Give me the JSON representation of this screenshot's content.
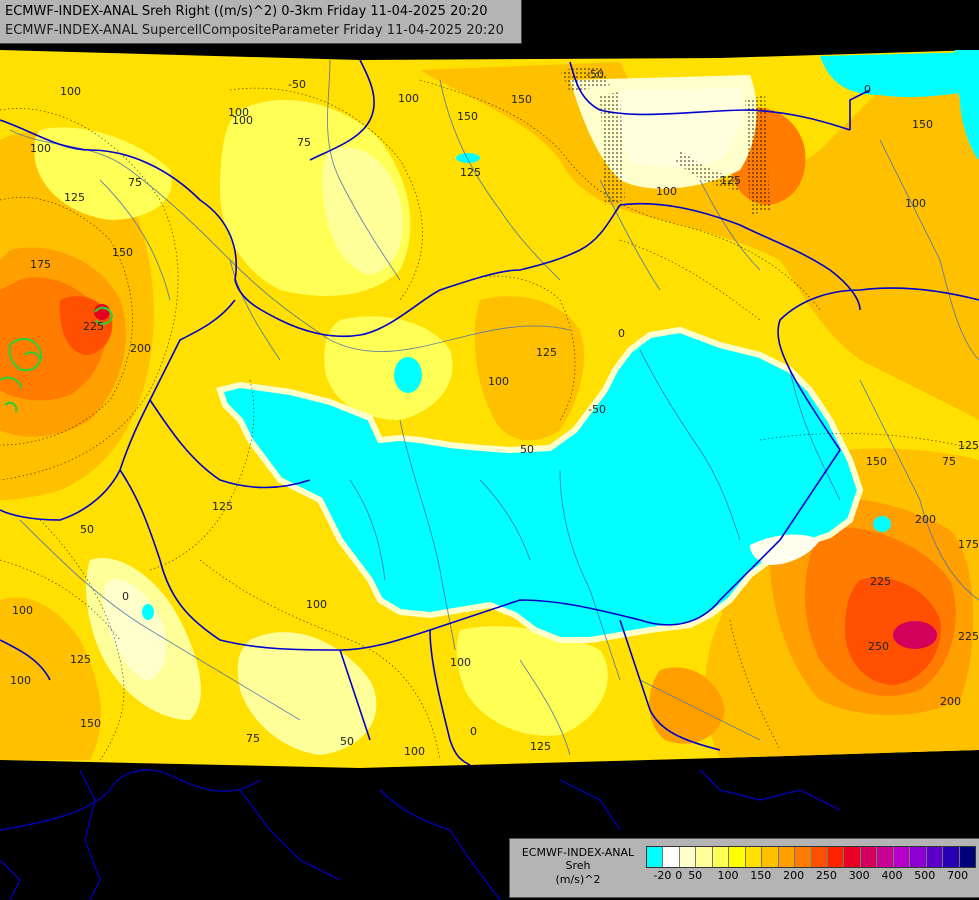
{
  "header": {
    "line1": "ECMWF-INDEX-ANAL Sreh Right ((m/s)^2) 0-3km Friday 11-04-2025 20:20",
    "line2": "ECMWF-INDEX-ANAL SupercellCompositeParameter Friday 11-04-2025 20:20"
  },
  "legend": {
    "name_line1": "ECMWF-INDEX-ANAL",
    "name_line2": "Sreh",
    "unit": "(m/s)^2",
    "colors": [
      "#00ffff",
      "#ffffff",
      "#ffffcc",
      "#ffff99",
      "#ffff55",
      "#ffff00",
      "#ffe000",
      "#ffc000",
      "#ffa000",
      "#ff7c00",
      "#ff5000",
      "#ff2400",
      "#e60023",
      "#d2005a",
      "#c80096",
      "#b400c8",
      "#8c00d2",
      "#5a00c8",
      "#2800b4",
      "#000078"
    ],
    "ticks": [
      {
        "label": "-20",
        "index": 0
      },
      {
        "label": "0",
        "index": 1
      },
      {
        "label": "50",
        "index": 2
      },
      {
        "label": "100",
        "index": 4
      },
      {
        "label": "150",
        "index": 6
      },
      {
        "label": "200",
        "index": 8
      },
      {
        "label": "250",
        "index": 10
      },
      {
        "label": "300",
        "index": 12
      },
      {
        "label": "400",
        "index": 14
      },
      {
        "label": "500",
        "index": 16
      },
      {
        "label": "700",
        "index": 18
      }
    ]
  },
  "map": {
    "colors": {
      "background": "#000000",
      "field_yellow": "#ffff00",
      "field_gold": "#ffe000",
      "field_orange": "#ffc000",
      "field_dark_orange": "#ffa000",
      "field_red": "#ff5000",
      "field_pale": "#ffffcc",
      "field_cyan": "#00ffff",
      "borders": "#0000cc",
      "rivers": "#4a6fb0",
      "scp_contour": "#33cc33"
    },
    "contour_labels": [
      {
        "label": "100"
      },
      {
        "label": "-50"
      },
      {
        "label": "100"
      },
      {
        "label": "100"
      },
      {
        "label": "75"
      },
      {
        "label": "100"
      },
      {
        "label": "150"
      },
      {
        "label": "150"
      },
      {
        "label": "-50"
      },
      {
        "label": "0"
      },
      {
        "label": "150"
      },
      {
        "label": "75"
      },
      {
        "label": "125"
      },
      {
        "label": "100"
      },
      {
        "label": "125"
      },
      {
        "label": "100"
      },
      {
        "label": "100"
      },
      {
        "label": "125"
      },
      {
        "label": "175"
      },
      {
        "label": "150"
      },
      {
        "label": "225"
      },
      {
        "label": "200"
      },
      {
        "label": "0"
      },
      {
        "label": "125"
      },
      {
        "label": "100"
      },
      {
        "label": "-50"
      },
      {
        "label": "50"
      },
      {
        "label": "125"
      },
      {
        "label": "150"
      },
      {
        "label": "75"
      },
      {
        "label": "200"
      },
      {
        "label": "175"
      },
      {
        "label": "225"
      },
      {
        "label": "250"
      },
      {
        "label": "225"
      },
      {
        "label": "200"
      },
      {
        "label": "125"
      },
      {
        "label": "50"
      },
      {
        "label": "0"
      },
      {
        "label": "100"
      },
      {
        "label": "100"
      },
      {
        "label": "125"
      },
      {
        "label": "100"
      },
      {
        "label": "150"
      },
      {
        "label": "75"
      },
      {
        "label": "50"
      },
      {
        "label": "100"
      },
      {
        "label": "100"
      },
      {
        "label": "125"
      },
      {
        "label": "0"
      }
    ]
  }
}
